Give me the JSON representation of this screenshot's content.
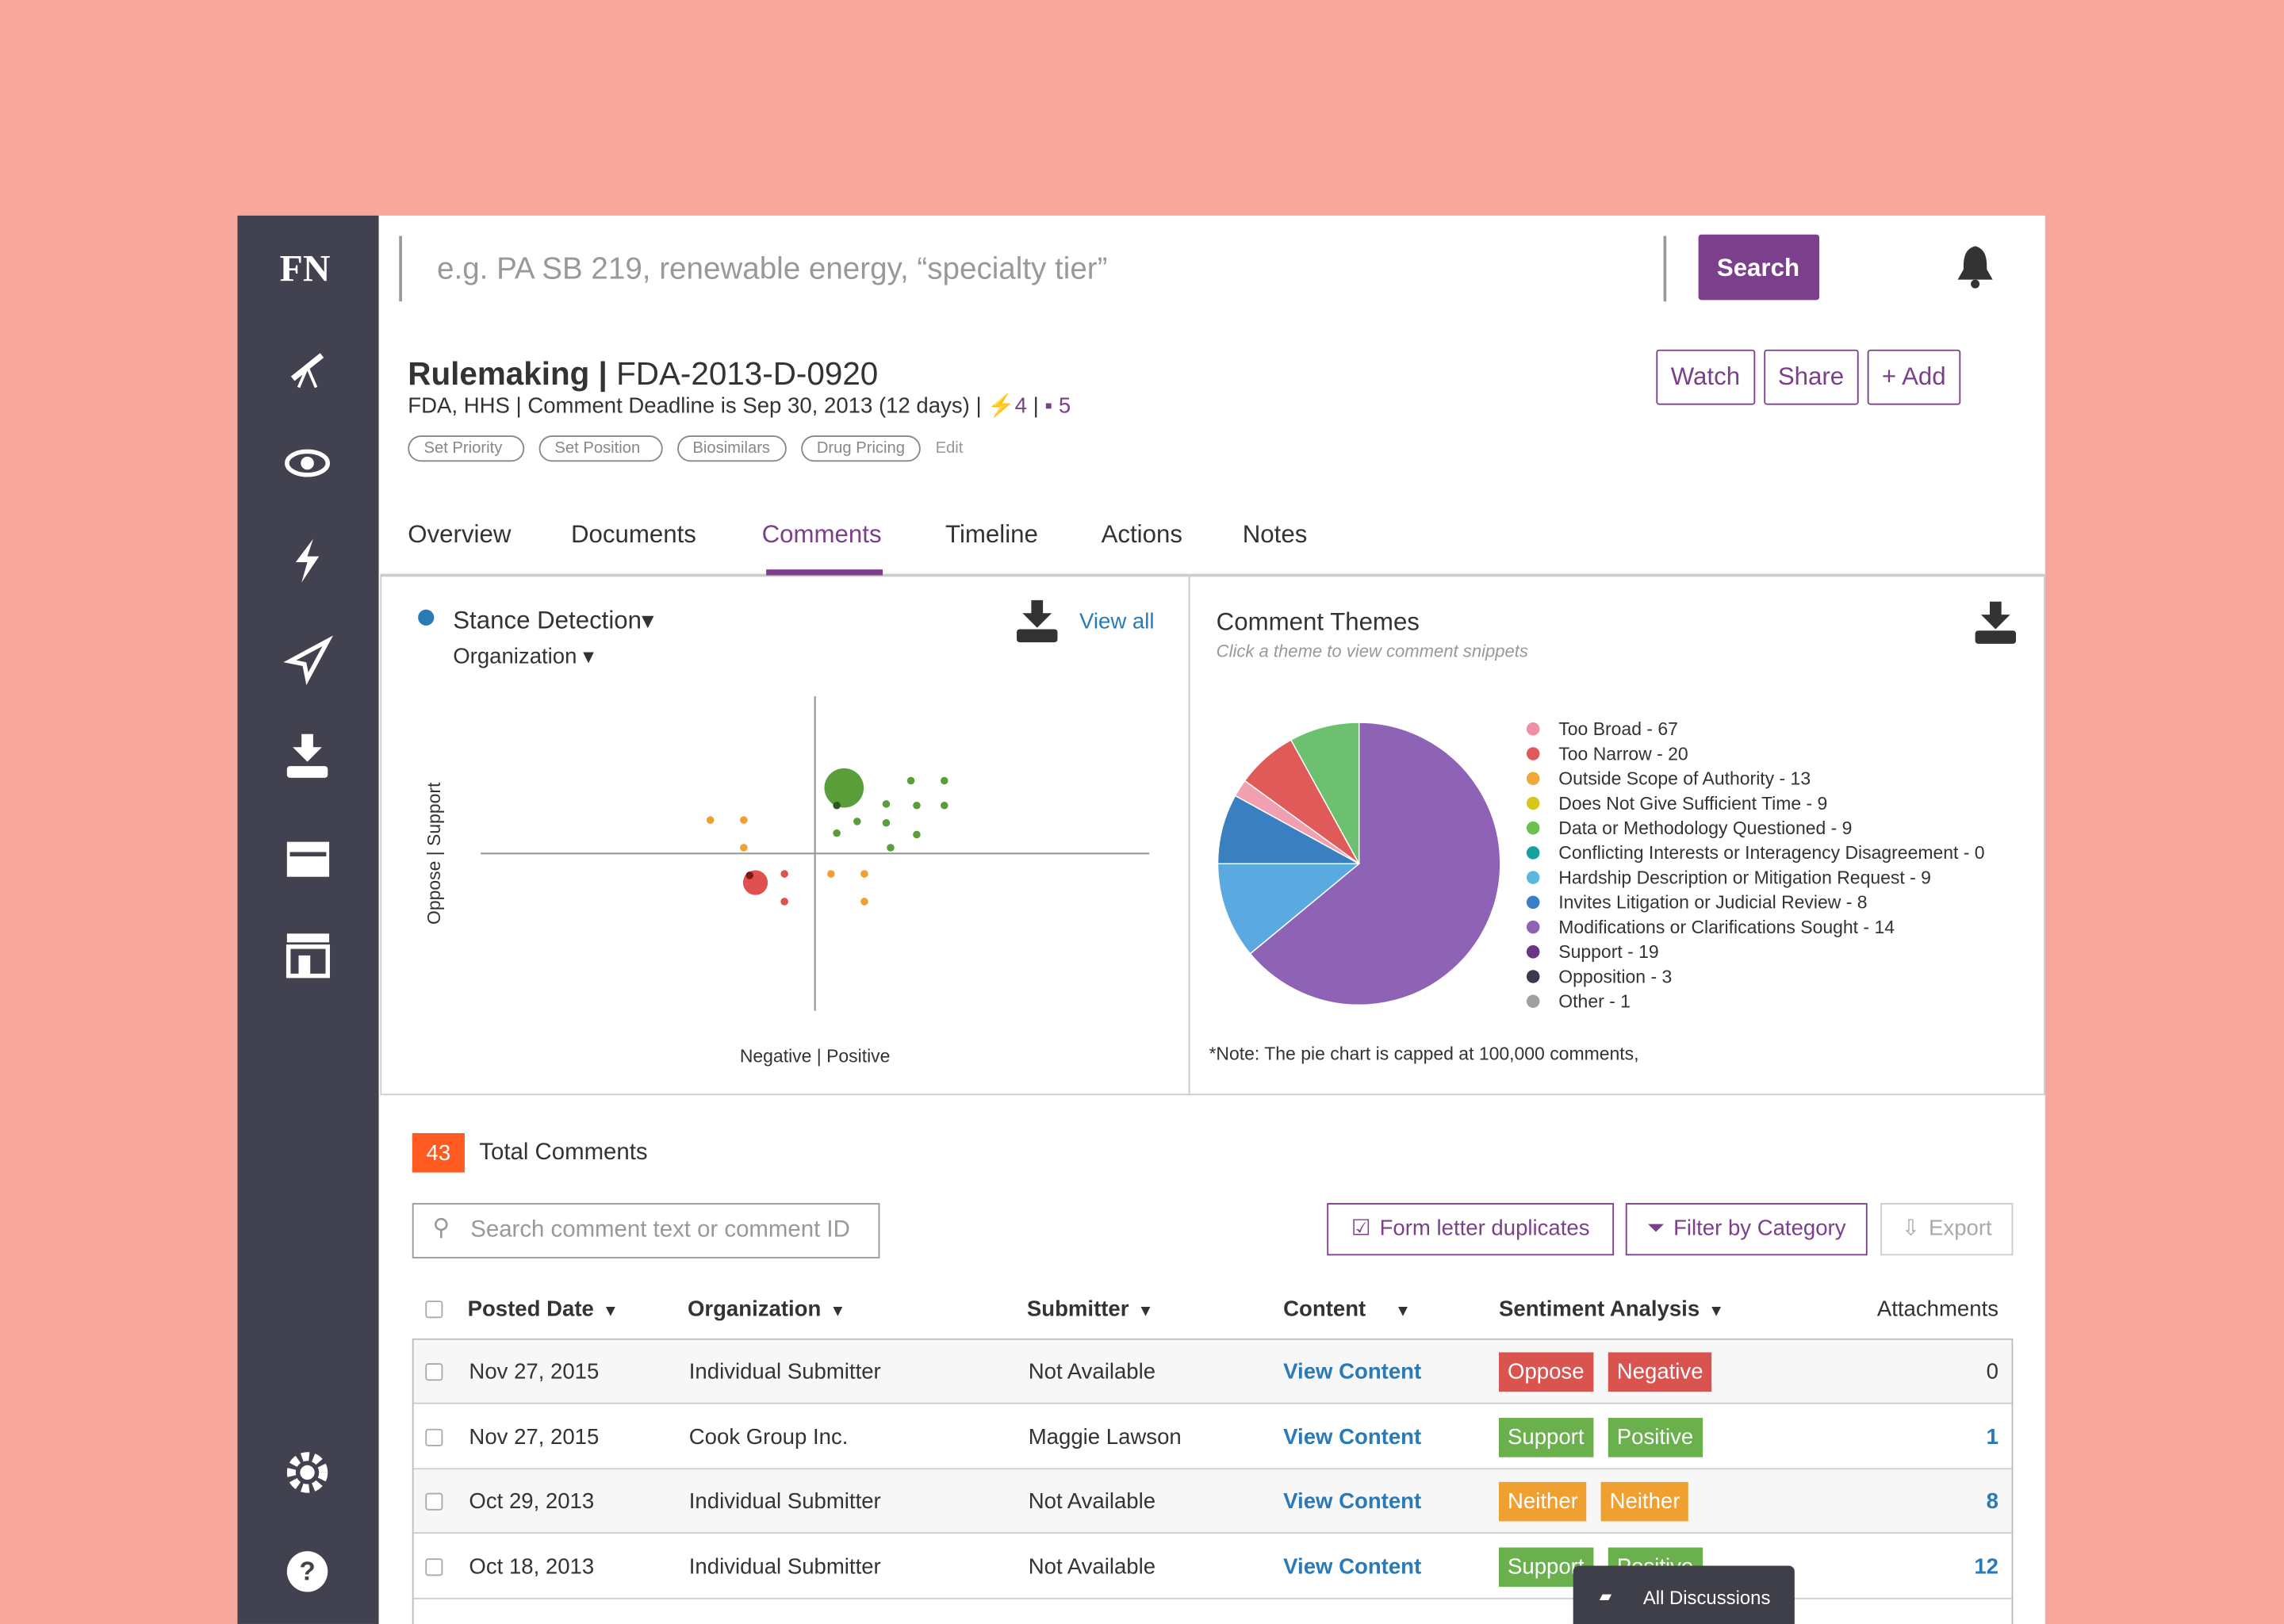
{
  "logo": "FN",
  "search": {
    "placeholder": "e.g. PA SB 219, renewable energy, “specialty tier”",
    "button": "Search"
  },
  "header": {
    "kind": "Rulemaking |",
    "docket": "FDA-2013-D-0920",
    "meta": "FDA, HHS | Comment Deadline is Sep 30, 2013 (12 days) |",
    "actions_count": 4,
    "separator": "|",
    "comments_count": 5,
    "tags": [
      "Set Priority",
      "Set Position",
      "Biosimilars",
      "Drug Pricing"
    ],
    "edit": "Edit",
    "buttons": [
      "Watch",
      "Share",
      "+ Add"
    ]
  },
  "tabs": [
    "Overview",
    "Documents",
    "Comments",
    "Timeline",
    "Actions",
    "Notes"
  ],
  "active_tab": 2,
  "stance": {
    "type": "scatter",
    "title": "Stance Detection",
    "group": "Organization",
    "view_all": "View all",
    "xlabel": "Negative | Positive",
    "ylabel": "Oppose | Support",
    "xlim": [
      -230,
      230
    ],
    "ylim": [
      -108,
      108
    ],
    "series": [
      {
        "color": "#f0a030",
        "x": [
          -72,
          -49,
          -49,
          11,
          34,
          34
        ],
        "y": [
          23,
          23,
          4,
          -14,
          -14,
          -33
        ],
        "sizes": [
          2.6,
          2.6,
          2.6,
          2.6,
          2.6,
          2.6
        ]
      },
      {
        "color": "#e05050",
        "x": [
          -41,
          -21,
          -21
        ],
        "y": [
          -20,
          -14,
          -33
        ],
        "sizes": [
          8.5,
          2.6,
          2.6
        ]
      },
      {
        "color": "#5a9e3a",
        "x": [
          20,
          29,
          15,
          49,
          66,
          89,
          70,
          89,
          49,
          70,
          52
        ],
        "y": [
          45,
          22,
          14,
          34,
          50,
          50,
          33,
          33,
          21,
          13,
          4
        ],
        "sizes": [
          13.5,
          2.6,
          2.6,
          2.6,
          2.6,
          2.6,
          2.6,
          2.6,
          2.6,
          2.6,
          2.6
        ]
      },
      {
        "color": "#7a1818",
        "x": [
          -45
        ],
        "y": [
          -15
        ],
        "sizes": [
          2.6
        ]
      },
      {
        "color": "#2c5a1c",
        "x": [
          15
        ],
        "y": [
          33
        ],
        "sizes": [
          2.6
        ]
      }
    ]
  },
  "themes": {
    "type": "pie",
    "title": "Comment Themes",
    "subtitle": "Click a theme to view comment snippets",
    "legend": [
      "Too Broad - 67",
      "Too Narrow - 20",
      "Outside Scope of Authority - 13",
      "Does Not Give Sufficient Time - 9",
      "Data or Methodology Questioned - 9",
      "Conflicting Interests or Interagency Disagreement - 0",
      "Hardship Description or Mitigation Request - 9",
      "Invites Litigation or Judicial Review - 8",
      "Modifications or Clarifications Sought - 14",
      "Support - 19",
      "Opposition - 3",
      "Other - 1"
    ],
    "legend_colors": [
      "#f28fa8",
      "#e05a5a",
      "#f0a838",
      "#d6c81a",
      "#6cc050",
      "#16a0a0",
      "#5ab8e0",
      "#3a7fc8",
      "#8e63b5",
      "#6a3585",
      "#3a3a4a",
      "#a0a0a0"
    ],
    "slices": {
      "values": [
        64,
        11,
        8,
        2,
        7,
        8
      ],
      "colors": [
        "#8e63b5",
        "#5aa9e0",
        "#3a7fc0",
        "#f0a0b0",
        "#e05a5a",
        "#6cc070"
      ]
    },
    "note": "*Note: The pie chart is capped at 100,000 comments,"
  },
  "comments": {
    "count": 43,
    "label": "Total Comments",
    "search_placeholder": "Search comment text or comment ID",
    "buttons": [
      "Form letter duplicates",
      "Filter by Category",
      "Export"
    ],
    "columns": [
      "Posted Date",
      "Organization",
      "Submitter",
      "Content",
      "Sentiment Analysis",
      "Attachments"
    ],
    "rows": [
      [
        "Nov 27, 2015",
        "Individual Submitter",
        "Not Available",
        "View Content",
        "Oppose",
        "Negative",
        0
      ],
      [
        "Nov 27, 2015",
        "Cook Group Inc.",
        "Maggie Lawson",
        "View Content",
        "Support",
        "Positive",
        1
      ],
      [
        "Oct 29, 2013",
        "Individual Submitter",
        "Not Available",
        "View Content",
        "Neither",
        "Neither",
        8
      ],
      [
        "Oct 18, 2013",
        "Individual Submitter",
        "Not Available",
        "View Content",
        "Support",
        "Positive",
        12
      ]
    ],
    "badge_colors": [
      [
        "#d9534f",
        "#d9534f"
      ],
      [
        "#6ab04c",
        "#6ab04c"
      ],
      [
        "#f0a030",
        "#f0a030"
      ],
      [
        "#6ab04c",
        "#6ab04c"
      ]
    ]
  },
  "chat": "All Discussions"
}
